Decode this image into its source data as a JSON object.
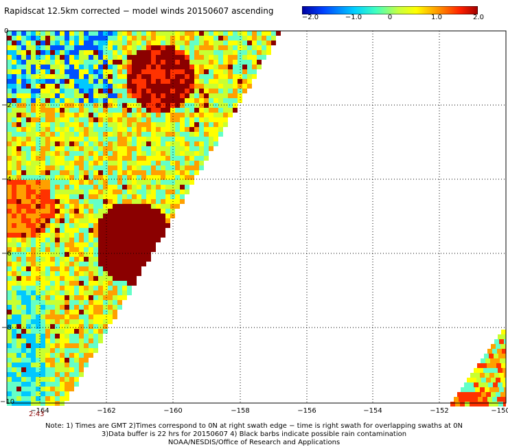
{
  "title": "Rapidscat 12.5km corrected − model winds 20150607 ascending",
  "colorbar": {
    "ticks": [
      "−2.0",
      "−1.0",
      "0",
      "1.0",
      "2.0"
    ],
    "colors": [
      "#0000c8",
      "#0050ff",
      "#00c8ff",
      "#64ffc8",
      "#c8ff32",
      "#ffff00",
      "#ffa000",
      "#ff3200",
      "#8b0000"
    ]
  },
  "map": {
    "x_ticks": [
      "−164",
      "−162",
      "−160",
      "−158",
      "−156",
      "−154",
      "−152",
      "−150"
    ],
    "y_ticks": [
      "0",
      "−2",
      "−4",
      "−6",
      "−8",
      "−10"
    ],
    "time_label": "2:43"
  },
  "notes": [
    "Note: 1) Times are GMT 2)Times correspond to 0N at right swath edge − time is right swath for overlapping swaths at 0N",
    "3)Data buffer is 22 hrs for 20150607 4) Black barbs indicate possible rain contamination",
    "NOAA/NESDIS/Office of Research and Applications"
  ]
}
